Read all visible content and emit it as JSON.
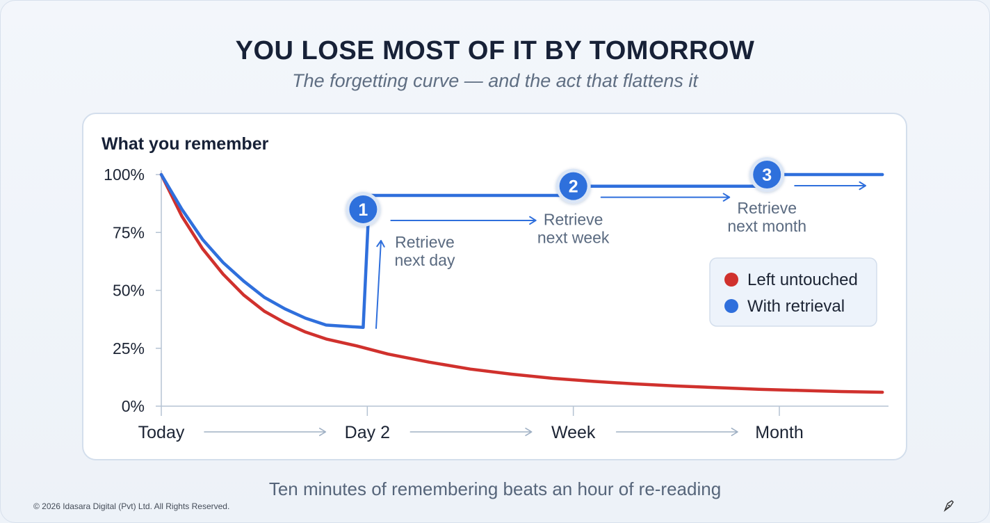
{
  "header": {
    "title": "YOU LOSE MOST OF IT BY TOMORROW",
    "subtitle": "The forgetting curve — and the act that flattens it"
  },
  "footer": {
    "tagline": "Ten minutes of remembering beats an hour of re-reading",
    "copyright": "© 2026 Idasara Digital (Pvt) Ltd. All Rights Reserved.",
    "corner_icon": "pen-nib-icon"
  },
  "chart_data": {
    "type": "line",
    "ylabel": "What you remember",
    "ylim": [
      0,
      100
    ],
    "yticks": [
      {
        "label": "100%",
        "value": 100
      },
      {
        "label": "75%",
        "value": 75
      },
      {
        "label": "50%",
        "value": 50
      },
      {
        "label": "25%",
        "value": 25
      },
      {
        "label": "0%",
        "value": 0
      }
    ],
    "xlim": [
      0,
      3.5
    ],
    "xticks": [
      {
        "label": "Today",
        "value": 0
      },
      {
        "label": "Day 2",
        "value": 1
      },
      {
        "label": "Week",
        "value": 2
      },
      {
        "label": "Month",
        "value": 3
      }
    ],
    "grid": false,
    "legend_position": "right",
    "series": [
      {
        "name": "Left untouched",
        "color": "#d0312d",
        "points": [
          [
            0,
            100
          ],
          [
            0.1,
            82
          ],
          [
            0.2,
            68
          ],
          [
            0.3,
            57
          ],
          [
            0.4,
            48
          ],
          [
            0.5,
            41
          ],
          [
            0.6,
            36
          ],
          [
            0.7,
            32
          ],
          [
            0.8,
            29
          ],
          [
            0.95,
            26
          ],
          [
            1.1,
            22.5
          ],
          [
            1.3,
            19
          ],
          [
            1.5,
            16
          ],
          [
            1.7,
            13.8
          ],
          [
            1.9,
            12
          ],
          [
            2.1,
            10.7
          ],
          [
            2.3,
            9.6
          ],
          [
            2.5,
            8.7
          ],
          [
            2.7,
            8
          ],
          [
            2.9,
            7.3
          ],
          [
            3.1,
            6.8
          ],
          [
            3.3,
            6.3
          ],
          [
            3.5,
            6
          ]
        ]
      },
      {
        "name": "With retrieval",
        "color": "#2f6fdc",
        "points": [
          [
            0,
            100
          ],
          [
            0.1,
            85
          ],
          [
            0.2,
            72
          ],
          [
            0.3,
            62
          ],
          [
            0.4,
            54
          ],
          [
            0.5,
            47
          ],
          [
            0.6,
            42
          ],
          [
            0.7,
            38
          ],
          [
            0.8,
            35
          ],
          [
            0.98,
            34
          ],
          [
            1.01,
            91
          ],
          [
            1.99,
            91
          ],
          [
            1.99,
            95
          ],
          [
            2.94,
            95
          ],
          [
            2.94,
            100
          ],
          [
            3.5,
            100
          ]
        ]
      }
    ],
    "retrievals": [
      {
        "number": "1",
        "x": 0.99,
        "y": 85,
        "label": [
          "Retrieve",
          "next day"
        ]
      },
      {
        "number": "2",
        "x": 2.0,
        "y": 95,
        "label": [
          "Retrieve",
          "next week"
        ]
      },
      {
        "number": "3",
        "x": 2.94,
        "y": 100,
        "label": [
          "Retrieve",
          "next month"
        ]
      }
    ]
  }
}
